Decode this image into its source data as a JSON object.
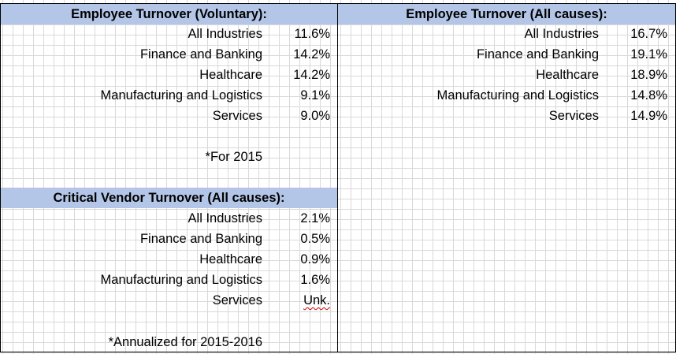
{
  "voluntary": {
    "title": "Employee Turnover (Voluntary):",
    "rows": [
      {
        "label": "All Industries",
        "value": "11.6%"
      },
      {
        "label": "Finance and Banking",
        "value": "14.2%"
      },
      {
        "label": "Healthcare",
        "value": "14.2%"
      },
      {
        "label": "Manufacturing and Logistics",
        "value": "9.1%"
      },
      {
        "label": "Services",
        "value": "9.0%"
      }
    ],
    "note": "*For 2015"
  },
  "all_causes": {
    "title": "Employee Turnover (All causes):",
    "rows": [
      {
        "label": "All Industries",
        "value": "16.7%"
      },
      {
        "label": "Finance and Banking",
        "value": "19.1%"
      },
      {
        "label": "Healthcare",
        "value": "18.9%"
      },
      {
        "label": "Manufacturing and Logistics",
        "value": "14.8%"
      },
      {
        "label": "Services",
        "value": "14.9%"
      }
    ]
  },
  "vendor": {
    "title": "Critical Vendor Turnover (All causes):",
    "rows": [
      {
        "label": "All Industries",
        "value": "2.1%"
      },
      {
        "label": "Finance and Banking",
        "value": "0.5%"
      },
      {
        "label": "Healthcare",
        "value": "0.9%"
      },
      {
        "label": "Manufacturing and Logistics",
        "value": "1.6%"
      },
      {
        "label": "Services",
        "value": "Unk."
      }
    ],
    "note": "*Annualized for 2015-2016"
  },
  "colors": {
    "header_fill": "#b4c6e7",
    "gridline": "#d9d9d9",
    "spellcheck_underline": "#d00000"
  }
}
